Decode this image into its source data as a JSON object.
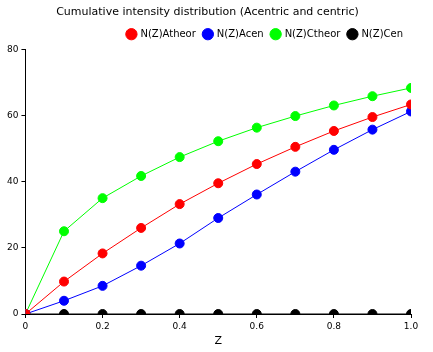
{
  "chart_data": {
    "type": "line",
    "title": "Cumulative intensity distribution (Acentric and centric)",
    "x_label": "Z",
    "x": [
      0,
      0.1,
      0.2,
      0.3,
      0.4,
      0.5,
      0.6,
      0.7,
      0.8,
      0.9,
      1.0
    ],
    "series": [
      {
        "name": "N(Z)Atheor",
        "color": "#ff0000",
        "marker": "circle",
        "values": [
          0,
          9.8,
          18.3,
          26,
          33.2,
          39.5,
          45.3,
          50.5,
          55.3,
          59.5,
          63.3
        ]
      },
      {
        "name": "N(Z)Acen",
        "color": "#0000ff",
        "marker": "circle",
        "values": [
          0,
          4,
          8.5,
          14.6,
          21.3,
          29,
          36.1,
          43,
          49.6,
          55.7,
          61.2
        ]
      },
      {
        "name": "N(Z)Ctheor",
        "color": "#00ff00",
        "marker": "circle",
        "values": [
          0,
          25,
          35,
          41.7,
          47.4,
          52.2,
          56.3,
          59.8,
          63,
          65.8,
          68.3
        ]
      },
      {
        "name": "N(Z)Cen",
        "color": "#000000",
        "marker": "circle",
        "values": [
          0,
          0,
          0,
          0,
          0,
          0,
          0,
          0,
          0,
          0,
          0
        ]
      }
    ],
    "xlim": [
      0,
      1
    ],
    "xticks": [
      0,
      0.2,
      0.4,
      0.6,
      0.8,
      1
    ],
    "ylim": [
      0,
      80
    ],
    "yticks": [
      0,
      20,
      40,
      60,
      80
    ],
    "grid": false,
    "legend": "upper right"
  }
}
